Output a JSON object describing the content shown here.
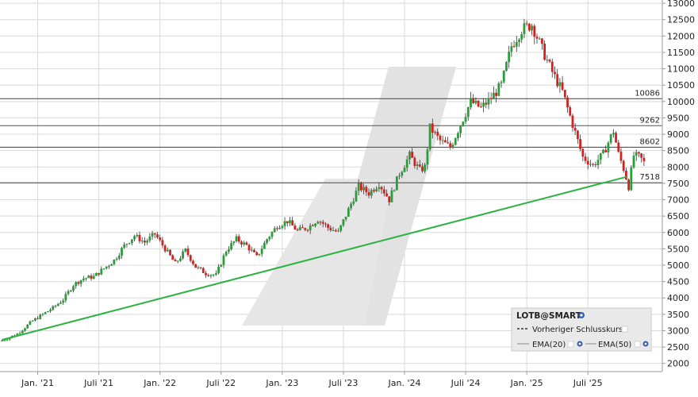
{
  "chart_data": {
    "type": "candlestick",
    "symbol_label": "LOTB@SMART",
    "y_ticks": [
      2000,
      2500,
      3000,
      3500,
      4000,
      4500,
      5000,
      5500,
      6000,
      6500,
      7000,
      7500,
      8000,
      8500,
      9000,
      9500,
      10000,
      10500,
      11000,
      11500,
      12000,
      12500,
      13000
    ],
    "ylim": [
      1750,
      13100
    ],
    "x_ticks": [
      {
        "label": "Jan. '21",
        "t": 0.5
      },
      {
        "label": "Juli '21",
        "t": 6.5
      },
      {
        "label": "Jan. '22",
        "t": 12.5
      },
      {
        "label": "Juli '22",
        "t": 18.5
      },
      {
        "label": "Jan. '23",
        "t": 24.5
      },
      {
        "label": "Juli '23",
        "t": 30.5
      },
      {
        "label": "Jan. '24",
        "t": 36.5
      },
      {
        "label": "Juli '24",
        "t": 42.5
      },
      {
        "label": "Jan. '25",
        "t": 48.5
      },
      {
        "label": "Juli '25",
        "t": 54.5
      }
    ],
    "xlim": [
      -3.2,
      61.8
    ],
    "levels": [
      {
        "value": 10086,
        "label": "10086"
      },
      {
        "value": 9262,
        "label": "9262"
      },
      {
        "value": 8602,
        "label": "8602"
      },
      {
        "value": 7518,
        "label": "7518"
      }
    ],
    "trendline": {
      "t0": -3.0,
      "v0": 2720,
      "t1": 58.3,
      "v1": 7700,
      "color": "#2db342"
    },
    "series_colors": {
      "up": "#2a9d3b",
      "down": "#d61f1f",
      "level": "#555555",
      "grid": "#d9d9d9"
    },
    "price_path": [
      [
        -3.0,
        2700
      ],
      [
        -1.5,
        2900
      ],
      [
        0,
        3300
      ],
      [
        1,
        3500
      ],
      [
        2,
        3700
      ],
      [
        3,
        3950
      ],
      [
        4,
        4400
      ],
      [
        5,
        4600
      ],
      [
        6,
        4650
      ],
      [
        7,
        4900
      ],
      [
        8,
        5150
      ],
      [
        9,
        5600
      ],
      [
        10,
        5900
      ],
      [
        11,
        5700
      ],
      [
        12,
        5950
      ],
      [
        13,
        5500
      ],
      [
        14,
        5050
      ],
      [
        15,
        5450
      ],
      [
        16,
        4950
      ],
      [
        17,
        4750
      ],
      [
        18,
        4700
      ],
      [
        19,
        5450
      ],
      [
        20,
        5800
      ],
      [
        21,
        5600
      ],
      [
        22,
        5250
      ],
      [
        23,
        5800
      ],
      [
        24,
        6200
      ],
      [
        25,
        6350
      ],
      [
        26,
        6050
      ],
      [
        27,
        6150
      ],
      [
        28,
        6400
      ],
      [
        29,
        6150
      ],
      [
        30,
        6000
      ],
      [
        31,
        6700
      ],
      [
        32,
        7400
      ],
      [
        33,
        7200
      ],
      [
        34,
        7500
      ],
      [
        35,
        7000
      ],
      [
        36,
        7800
      ],
      [
        37,
        8350
      ],
      [
        38,
        7900
      ],
      [
        38.5,
        8000
      ],
      [
        39,
        9200
      ],
      [
        40,
        8800
      ],
      [
        41,
        8600
      ],
      [
        42,
        9300
      ],
      [
        43,
        10000
      ],
      [
        44,
        9800
      ],
      [
        45,
        10100
      ],
      [
        46,
        10500
      ],
      [
        47,
        11700
      ],
      [
        48,
        12200
      ],
      [
        49,
        12350
      ],
      [
        50,
        11600
      ],
      [
        51,
        10900
      ],
      [
        52,
        10300
      ],
      [
        53,
        9300
      ],
      [
        54,
        8300
      ],
      [
        55,
        8050
      ],
      [
        56,
        8400
      ],
      [
        57,
        9100
      ],
      [
        57.5,
        8400
      ],
      [
        58,
        7950
      ],
      [
        58.5,
        7400
      ],
      [
        59,
        8350
      ],
      [
        59.6,
        8300
      ],
      [
        60.2,
        8050
      ]
    ]
  },
  "legend": {
    "symbol": "LOTB@SMART",
    "prev_close": "Vorheriger Schlusskurs",
    "ema20": "EMA(20)",
    "ema50": "EMA(50)",
    "icon": "gear-icon"
  }
}
